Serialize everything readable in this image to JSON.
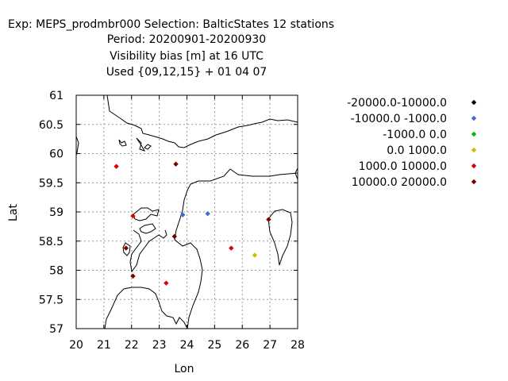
{
  "header": {
    "line1": "Exp: MEPS_prodmbr000   Selection: BalticStates     12 stations",
    "line2": "Period: 20200901-20200930",
    "line3": "Visibility bias [m] at  16 UTC",
    "line4": "Used {09,12,15} + 01 04 07"
  },
  "chart_data": {
    "type": "scatter",
    "xlabel": "Lon",
    "ylabel": "Lat",
    "xlim": [
      20,
      28
    ],
    "ylim": [
      57,
      61
    ],
    "xticks": [
      "20",
      "21",
      "22",
      "23",
      "24",
      "25",
      "26",
      "27",
      "28"
    ],
    "yticks": [
      "57",
      "57.5",
      "58",
      "58.5",
      "59",
      "59.5",
      "60",
      "60.5",
      "61"
    ],
    "grid": true,
    "legend_position": "right",
    "series": [
      {
        "name": "-20000.0-10000.0",
        "color": "#000000",
        "points": []
      },
      {
        "name": "-10000.0 -1000.0",
        "color": "#3a6fd6",
        "points": [
          [
            23.85,
            58.95
          ],
          [
            24.75,
            58.97
          ]
        ]
      },
      {
        "name": "-1000.0 0.0",
        "color": "#00bb00",
        "points": []
      },
      {
        "name": "0.0 1000.0",
        "color": "#c8c000",
        "points": [
          [
            26.45,
            58.26
          ]
        ]
      },
      {
        "name": "1000.0 10000.0",
        "color": "#e00000",
        "points": [
          [
            21.45,
            59.78
          ],
          [
            22.05,
            58.93
          ],
          [
            25.6,
            58.38
          ],
          [
            23.25,
            57.78
          ]
        ]
      },
      {
        "name": "10000.0 20000.0",
        "color": "#7a0000",
        "points": [
          [
            23.6,
            59.82
          ],
          [
            23.55,
            58.58
          ],
          [
            21.8,
            58.38
          ],
          [
            22.05,
            57.9
          ],
          [
            26.95,
            58.87
          ]
        ]
      }
    ]
  }
}
